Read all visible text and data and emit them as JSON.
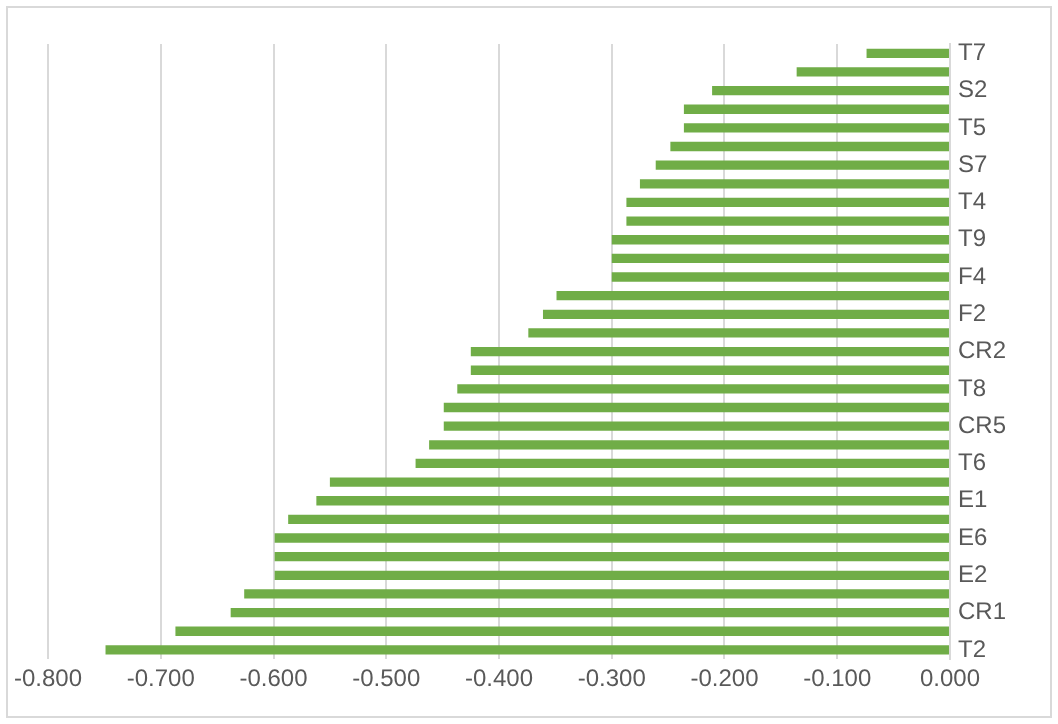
{
  "chart_data": {
    "type": "bar",
    "orientation": "horizontal",
    "categories": [
      "T7",
      null,
      "S2",
      null,
      "T5",
      null,
      "S7",
      null,
      "T4",
      null,
      "T9",
      null,
      "F4",
      null,
      "F2",
      null,
      "CR2",
      null,
      "T8",
      null,
      "CR5",
      null,
      "T6",
      null,
      "E1",
      null,
      "E6",
      null,
      "E2",
      null,
      "CR1",
      null,
      "T2"
    ],
    "values": [
      -0.074,
      -0.136,
      -0.211,
      -0.236,
      -0.236,
      -0.248,
      -0.261,
      -0.275,
      -0.287,
      -0.287,
      -0.3,
      -0.3,
      -0.3,
      -0.349,
      -0.361,
      -0.374,
      -0.425,
      -0.425,
      -0.437,
      -0.449,
      -0.449,
      -0.462,
      -0.474,
      -0.55,
      -0.562,
      -0.587,
      -0.599,
      -0.599,
      -0.599,
      -0.626,
      -0.638,
      -0.687,
      -0.749
    ],
    "color": "#70ad47",
    "xlim": [
      -0.8,
      0
    ],
    "xticks": [
      {
        "value": -0.8,
        "label": "-0.800"
      },
      {
        "value": -0.7,
        "label": "-0.700"
      },
      {
        "value": -0.6,
        "label": "-0.600"
      },
      {
        "value": -0.5,
        "label": "-0.500"
      },
      {
        "value": -0.4,
        "label": "-0.400"
      },
      {
        "value": -0.3,
        "label": "-0.300"
      },
      {
        "value": -0.2,
        "label": "-0.200"
      },
      {
        "value": -0.1,
        "label": "-0.100"
      },
      {
        "value": 0,
        "label": "0.000"
      }
    ],
    "grid": "x"
  }
}
